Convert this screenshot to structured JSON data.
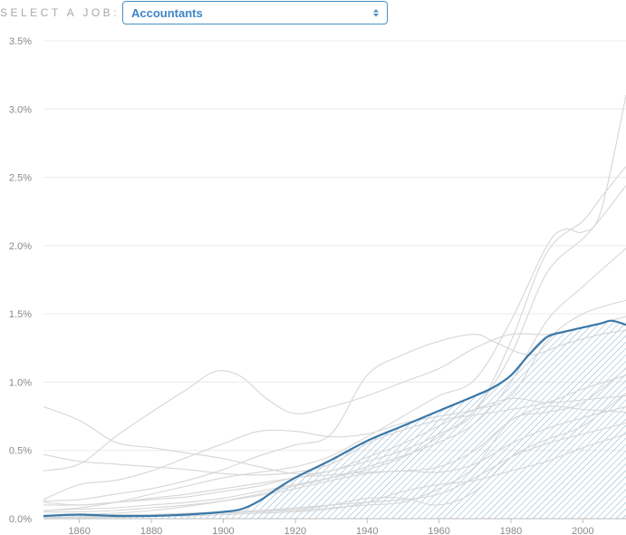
{
  "selector": {
    "label": "SELECT A JOB:",
    "value": "Accountants"
  },
  "colors": {
    "highlight": "#3b78a8",
    "background_series": "#d6d6d6",
    "grid": "#ececec",
    "hatch": "#8cb6d2"
  },
  "chart_data": {
    "type": "line",
    "xlim": [
      1850,
      2012
    ],
    "ylim": [
      0,
      3.5
    ],
    "x_ticks": [
      1860,
      1880,
      1900,
      1920,
      1940,
      1960,
      1980,
      2000
    ],
    "y_ticks": [
      {
        "value": 0,
        "label": "0.0%"
      },
      {
        "value": 0.5,
        "label": "0.5%"
      },
      {
        "value": 1,
        "label": "1.0%"
      },
      {
        "value": 1.5,
        "label": "1.5%"
      },
      {
        "value": 2,
        "label": "2.0%"
      },
      {
        "value": 2.5,
        "label": "2.5%"
      },
      {
        "value": 3,
        "label": "3.0%"
      },
      {
        "value": 3.5,
        "label": "3.5%"
      }
    ],
    "grid": true,
    "highlight": {
      "name": "Accountants",
      "points": [
        [
          1850,
          0.02
        ],
        [
          1860,
          0.03
        ],
        [
          1870,
          0.02
        ],
        [
          1880,
          0.02
        ],
        [
          1890,
          0.03
        ],
        [
          1900,
          0.05
        ],
        [
          1905,
          0.07
        ],
        [
          1910,
          0.13
        ],
        [
          1915,
          0.22
        ],
        [
          1920,
          0.3
        ],
        [
          1930,
          0.43
        ],
        [
          1940,
          0.57
        ],
        [
          1950,
          0.68
        ],
        [
          1960,
          0.79
        ],
        [
          1970,
          0.9
        ],
        [
          1975,
          0.96
        ],
        [
          1980,
          1.05
        ],
        [
          1985,
          1.2
        ],
        [
          1990,
          1.33
        ],
        [
          1995,
          1.37
        ],
        [
          2000,
          1.4
        ],
        [
          2005,
          1.43
        ],
        [
          2008,
          1.45
        ],
        [
          2012,
          1.42
        ]
      ]
    },
    "background_series": [
      [
        [
          1850,
          0.82
        ],
        [
          1860,
          0.72
        ],
        [
          1870,
          0.56
        ],
        [
          1880,
          0.52
        ],
        [
          1890,
          0.48
        ],
        [
          1900,
          0.44
        ],
        [
          1910,
          0.38
        ],
        [
          1920,
          0.33
        ],
        [
          1930,
          0.35
        ],
        [
          1940,
          0.45
        ],
        [
          1950,
          0.55
        ],
        [
          1960,
          0.68
        ],
        [
          1970,
          0.8
        ],
        [
          1980,
          0.88
        ],
        [
          1990,
          0.85
        ],
        [
          2000,
          0.87
        ],
        [
          2012,
          0.9
        ]
      ],
      [
        [
          1850,
          0.35
        ],
        [
          1860,
          0.4
        ],
        [
          1870,
          0.6
        ],
        [
          1880,
          0.78
        ],
        [
          1890,
          0.95
        ],
        [
          1898,
          1.08
        ],
        [
          1905,
          1.04
        ],
        [
          1912,
          0.88
        ],
        [
          1920,
          0.77
        ],
        [
          1930,
          0.82
        ],
        [
          1940,
          0.9
        ],
        [
          1950,
          1.0
        ],
        [
          1960,
          1.1
        ],
        [
          1970,
          1.25
        ],
        [
          1980,
          1.35
        ],
        [
          1990,
          1.35
        ],
        [
          2000,
          1.4
        ],
        [
          2012,
          1.48
        ]
      ],
      [
        [
          1850,
          0.14
        ],
        [
          1860,
          0.25
        ],
        [
          1870,
          0.28
        ],
        [
          1880,
          0.35
        ],
        [
          1890,
          0.45
        ],
        [
          1900,
          0.55
        ],
        [
          1910,
          0.64
        ],
        [
          1920,
          0.64
        ],
        [
          1930,
          0.6
        ],
        [
          1940,
          0.62
        ],
        [
          1950,
          0.7
        ],
        [
          1960,
          0.75
        ],
        [
          1970,
          0.8
        ],
        [
          1980,
          0.9
        ],
        [
          1990,
          1.3
        ],
        [
          2000,
          1.5
        ],
        [
          2012,
          1.6
        ]
      ],
      [
        [
          1850,
          0.47
        ],
        [
          1860,
          0.42
        ],
        [
          1870,
          0.4
        ],
        [
          1880,
          0.38
        ],
        [
          1890,
          0.36
        ],
        [
          1900,
          0.33
        ],
        [
          1910,
          0.32
        ],
        [
          1920,
          0.34
        ],
        [
          1930,
          0.4
        ],
        [
          1940,
          0.55
        ],
        [
          1950,
          0.65
        ],
        [
          1960,
          0.72
        ],
        [
          1970,
          0.76
        ],
        [
          1980,
          0.8
        ],
        [
          1990,
          0.85
        ],
        [
          2000,
          0.95
        ],
        [
          2012,
          1.05
        ]
      ],
      [
        [
          1850,
          0.13
        ],
        [
          1860,
          0.14
        ],
        [
          1870,
          0.18
        ],
        [
          1880,
          0.22
        ],
        [
          1890,
          0.28
        ],
        [
          1900,
          0.36
        ],
        [
          1910,
          0.46
        ],
        [
          1920,
          0.54
        ],
        [
          1930,
          0.62
        ],
        [
          1940,
          1.05
        ],
        [
          1950,
          1.2
        ],
        [
          1960,
          1.3
        ],
        [
          1970,
          1.35
        ],
        [
          1975,
          1.3
        ],
        [
          1985,
          1.2
        ],
        [
          1995,
          1.28
        ],
        [
          2005,
          1.35
        ],
        [
          2012,
          1.38
        ]
      ],
      [
        [
          1850,
          0.06
        ],
        [
          1860,
          0.08
        ],
        [
          1870,
          0.12
        ],
        [
          1880,
          0.18
        ],
        [
          1890,
          0.24
        ],
        [
          1900,
          0.3
        ],
        [
          1910,
          0.34
        ],
        [
          1920,
          0.38
        ],
        [
          1930,
          0.46
        ],
        [
          1940,
          0.6
        ],
        [
          1950,
          0.75
        ],
        [
          1960,
          0.9
        ],
        [
          1970,
          1.02
        ],
        [
          1980,
          1.45
        ],
        [
          1990,
          2.0
        ],
        [
          1995,
          2.12
        ],
        [
          2000,
          2.1
        ],
        [
          2005,
          2.25
        ],
        [
          2012,
          3.1
        ]
      ],
      [
        [
          1850,
          0.1
        ],
        [
          1860,
          0.1
        ],
        [
          1870,
          0.12
        ],
        [
          1880,
          0.15
        ],
        [
          1890,
          0.18
        ],
        [
          1900,
          0.22
        ],
        [
          1910,
          0.26
        ],
        [
          1920,
          0.3
        ],
        [
          1930,
          0.35
        ],
        [
          1940,
          0.42
        ],
        [
          1950,
          0.5
        ],
        [
          1960,
          0.62
        ],
        [
          1970,
          0.78
        ],
        [
          1980,
          1.3
        ],
        [
          1990,
          1.95
        ],
        [
          2000,
          2.18
        ],
        [
          2005,
          2.35
        ],
        [
          2012,
          2.58
        ]
      ],
      [
        [
          1850,
          0.06
        ],
        [
          1860,
          0.07
        ],
        [
          1870,
          0.08
        ],
        [
          1880,
          0.1
        ],
        [
          1890,
          0.12
        ],
        [
          1900,
          0.15
        ],
        [
          1910,
          0.2
        ],
        [
          1920,
          0.25
        ],
        [
          1930,
          0.3
        ],
        [
          1940,
          0.36
        ],
        [
          1950,
          0.45
        ],
        [
          1960,
          0.6
        ],
        [
          1970,
          0.8
        ],
        [
          1980,
          1.2
        ],
        [
          1990,
          1.8
        ],
        [
          2000,
          2.05
        ],
        [
          2005,
          2.2
        ],
        [
          2012,
          2.44
        ]
      ],
      [
        [
          1850,
          0.02
        ],
        [
          1860,
          0.03
        ],
        [
          1870,
          0.04
        ],
        [
          1880,
          0.06
        ],
        [
          1890,
          0.09
        ],
        [
          1900,
          0.13
        ],
        [
          1910,
          0.18
        ],
        [
          1920,
          0.24
        ],
        [
          1930,
          0.3
        ],
        [
          1940,
          0.38
        ],
        [
          1950,
          0.46
        ],
        [
          1960,
          0.56
        ],
        [
          1970,
          0.7
        ],
        [
          1980,
          1.0
        ],
        [
          1990,
          1.45
        ],
        [
          2000,
          1.7
        ],
        [
          2012,
          1.98
        ]
      ],
      [
        [
          1850,
          0.12
        ],
        [
          1860,
          0.1
        ],
        [
          1870,
          0.12
        ],
        [
          1880,
          0.14
        ],
        [
          1890,
          0.16
        ],
        [
          1900,
          0.2
        ],
        [
          1910,
          0.24
        ],
        [
          1920,
          0.3
        ],
        [
          1930,
          0.32
        ],
        [
          1940,
          0.34
        ],
        [
          1950,
          0.35
        ],
        [
          1960,
          0.38
        ],
        [
          1970,
          0.5
        ],
        [
          1980,
          0.72
        ],
        [
          1990,
          0.82
        ],
        [
          2000,
          0.8
        ],
        [
          2012,
          0.78
        ]
      ],
      [
        [
          1850,
          0.05
        ],
        [
          1860,
          0.05
        ],
        [
          1870,
          0.06
        ],
        [
          1880,
          0.08
        ],
        [
          1890,
          0.1
        ],
        [
          1900,
          0.13
        ],
        [
          1910,
          0.17
        ],
        [
          1920,
          0.22
        ],
        [
          1930,
          0.28
        ],
        [
          1940,
          0.33
        ],
        [
          1950,
          0.35
        ],
        [
          1960,
          0.34
        ],
        [
          1970,
          0.4
        ],
        [
          1980,
          0.55
        ],
        [
          1990,
          0.66
        ],
        [
          2000,
          0.74
        ],
        [
          2012,
          0.82
        ]
      ],
      [
        [
          1850,
          0.02
        ],
        [
          1860,
          0.02
        ],
        [
          1870,
          0.03
        ],
        [
          1880,
          0.03
        ],
        [
          1890,
          0.04
        ],
        [
          1900,
          0.05
        ],
        [
          1910,
          0.06
        ],
        [
          1920,
          0.08
        ],
        [
          1930,
          0.1
        ],
        [
          1940,
          0.12
        ],
        [
          1950,
          0.14
        ],
        [
          1960,
          0.18
        ],
        [
          1970,
          0.3
        ],
        [
          1980,
          0.45
        ],
        [
          1990,
          0.55
        ],
        [
          2000,
          0.62
        ],
        [
          2012,
          0.7
        ]
      ],
      [
        [
          1850,
          0.01
        ],
        [
          1860,
          0.01
        ],
        [
          1870,
          0.01
        ],
        [
          1880,
          0.02
        ],
        [
          1890,
          0.02
        ],
        [
          1900,
          0.03
        ],
        [
          1910,
          0.04
        ],
        [
          1920,
          0.05
        ],
        [
          1930,
          0.07
        ],
        [
          1940,
          0.12
        ],
        [
          1950,
          0.2
        ],
        [
          1960,
          0.25
        ],
        [
          1970,
          0.28
        ],
        [
          1980,
          0.35
        ],
        [
          1990,
          0.42
        ],
        [
          2000,
          0.52
        ],
        [
          2012,
          0.62
        ]
      ],
      [
        [
          1850,
          0.02
        ],
        [
          1860,
          0.02
        ],
        [
          1870,
          0.02
        ],
        [
          1880,
          0.03
        ],
        [
          1890,
          0.04
        ],
        [
          1900,
          0.05
        ],
        [
          1910,
          0.06
        ],
        [
          1920,
          0.07
        ],
        [
          1930,
          0.1
        ],
        [
          1940,
          0.15
        ],
        [
          1950,
          0.15
        ],
        [
          1960,
          0.1
        ],
        [
          1970,
          0.2
        ],
        [
          1980,
          0.45
        ],
        [
          1990,
          0.58
        ],
        [
          2000,
          0.68
        ],
        [
          2012,
          0.92
        ]
      ],
      [
        [
          1850,
          0.01
        ],
        [
          1860,
          0.01
        ],
        [
          1870,
          0.02
        ],
        [
          1880,
          0.02
        ],
        [
          1890,
          0.03
        ],
        [
          1900,
          0.04
        ],
        [
          1910,
          0.05
        ],
        [
          1920,
          0.06
        ],
        [
          1930,
          0.08
        ],
        [
          1940,
          0.1
        ],
        [
          1950,
          0.12
        ],
        [
          1960,
          0.22
        ],
        [
          1970,
          0.38
        ],
        [
          1980,
          0.72
        ],
        [
          1990,
          0.78
        ],
        [
          2000,
          0.85
        ],
        [
          2012,
          1.1
        ]
      ]
    ]
  }
}
